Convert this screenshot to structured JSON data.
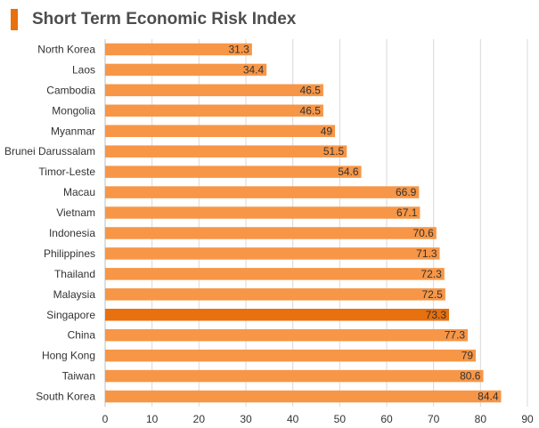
{
  "title": "Short Term Economic Risk Index",
  "colors": {
    "bar": "#f79646",
    "highlight": "#e8700e",
    "title_accent": "#e8700e",
    "grid": "#d9d9d9"
  },
  "chart_data": {
    "type": "bar",
    "orientation": "horizontal",
    "title": "Short Term Economic Risk Index",
    "categories": [
      "North Korea",
      "Laos",
      "Cambodia",
      "Mongolia",
      "Myanmar",
      "Brunei Darussalam",
      "Timor-Leste",
      "Macau",
      "Vietnam",
      "Indonesia",
      "Philippines",
      "Thailand",
      "Malaysia",
      "Singapore",
      "China",
      "Hong Kong",
      "Taiwan",
      "South Korea"
    ],
    "values": [
      31.3,
      34.4,
      46.5,
      46.5,
      49,
      51.5,
      54.6,
      66.9,
      67.1,
      70.6,
      71.3,
      72.3,
      72.5,
      73.3,
      77.3,
      79,
      80.6,
      84.4
    ],
    "value_labels": [
      "31.3",
      "34.4",
      "46.5",
      "46.5",
      "49",
      "51.5",
      "54.6",
      "66.9",
      "67.1",
      "70.6",
      "71.3",
      "72.3",
      "72.5",
      "73.3",
      "77.3",
      "79",
      "80.6",
      "84.4"
    ],
    "highlighted_category": "Singapore",
    "xlim": [
      0,
      90
    ],
    "xticks": [
      "0",
      "10",
      "20",
      "30",
      "40",
      "50",
      "60",
      "70",
      "80",
      "90"
    ],
    "grid": true,
    "legend": "none"
  }
}
